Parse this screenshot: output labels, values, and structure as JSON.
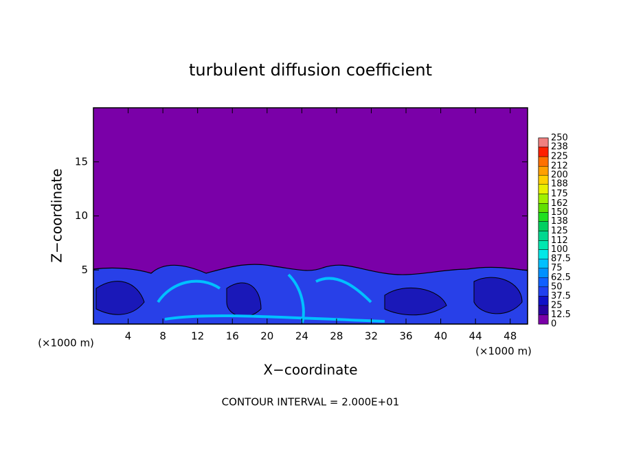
{
  "chart_data": {
    "type": "contour",
    "title": "turbulent diffusion coefficient",
    "x_label": "X−coordinate",
    "y_label": "Z−coordinate",
    "y_unit_label": "(×1000 m)",
    "x_unit_label": "(×1000 m)",
    "annotation": "CONTOUR INTERVAL = 2.000E+01",
    "xlim": [
      0,
      50
    ],
    "ylim": [
      0,
      20
    ],
    "xticks": [
      4,
      8,
      12,
      16,
      20,
      24,
      28,
      32,
      36,
      40,
      44,
      48
    ],
    "yticks": [
      5,
      10,
      15
    ],
    "colorbar_ticks": [
      0,
      12.5,
      25,
      37.5,
      50,
      62.5,
      75,
      87.5,
      100,
      112,
      125,
      138,
      150,
      162,
      175,
      188,
      200,
      212,
      225,
      238,
      250
    ],
    "colors": [
      "#7a00a8",
      "#2800a0",
      "#1010c8",
      "#2040f0",
      "#1060ff",
      "#0090ff",
      "#00c0ff",
      "#00e8e8",
      "#00e8b0",
      "#00d890",
      "#00d060",
      "#20e020",
      "#60e000",
      "#a0f000",
      "#e8f000",
      "#ffd000",
      "#ffa000",
      "#ff7000",
      "#ff2000",
      "#f08080"
    ]
  }
}
